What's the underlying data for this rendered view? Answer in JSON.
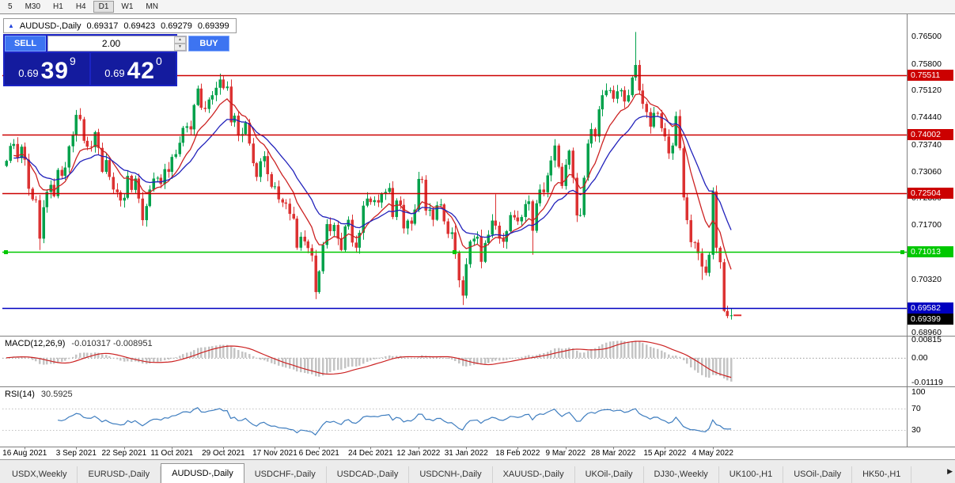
{
  "toolbar": {
    "timeframes": [
      "5",
      "M30",
      "H1",
      "H4",
      "D1",
      "W1",
      "MN"
    ],
    "active": "D1"
  },
  "chart": {
    "info": {
      "collapse_icon": "▲",
      "symbol": "AUDUSD-,Daily",
      "open": "0.69317",
      "high": "0.69423",
      "low": "0.69279",
      "close": "0.69399"
    },
    "trade_panel": {
      "sell_label": "SELL",
      "buy_label": "BUY",
      "volume": "2.00",
      "bid_small": "0.69",
      "bid_big": "39",
      "bid_sup": "9",
      "ask_small": "0.69",
      "ask_big": "42",
      "ask_sup": "0"
    },
    "y_axis_labels": [
      {
        "text": "0.76500",
        "value": 0.765
      },
      {
        "text": "0.75800",
        "value": 0.758
      },
      {
        "text": "0.75120",
        "value": 0.7512
      },
      {
        "text": "0.74440",
        "value": 0.7444
      },
      {
        "text": "0.73740",
        "value": 0.7374
      },
      {
        "text": "0.73060",
        "value": 0.7306
      },
      {
        "text": "0.72380",
        "value": 0.7238
      },
      {
        "text": "0.71700",
        "value": 0.717
      },
      {
        "text": "0.70320",
        "value": 0.7032
      },
      {
        "text": "0.68960",
        "value": 0.6896
      }
    ],
    "x_axis_labels": [
      {
        "text": "16 Aug 2021",
        "bar": 5
      },
      {
        "text": "3 Sep 2021",
        "bar": 19
      },
      {
        "text": "22 Sep 2021",
        "bar": 32
      },
      {
        "text": "11 Oct 2021",
        "bar": 45
      },
      {
        "text": "29 Oct 2021",
        "bar": 59
      },
      {
        "text": "17 Nov 2021",
        "bar": 73
      },
      {
        "text": "6 Dec 2021",
        "bar": 85
      },
      {
        "text": "24 Dec 2021",
        "bar": 99
      },
      {
        "text": "12 Jan 2022",
        "bar": 112
      },
      {
        "text": "31 Jan 2022",
        "bar": 125
      },
      {
        "text": "18 Feb 2022",
        "bar": 139
      },
      {
        "text": "9 Mar 2022",
        "bar": 152
      },
      {
        "text": "28 Mar 2022",
        "bar": 165
      },
      {
        "text": "15 Apr 2022",
        "bar": 179
      },
      {
        "text": "4 May 2022",
        "bar": 192
      }
    ],
    "hlines": [
      {
        "label": "0.75511",
        "value": 0.75511,
        "color": "#CC0000"
      },
      {
        "label": "0.74002",
        "value": 0.74002,
        "color": "#CC0000"
      },
      {
        "label": "0.72504",
        "value": 0.72504,
        "color": "#CC0000"
      },
      {
        "label": "0.71013",
        "value": 0.71013,
        "color": "#00C800",
        "handles": true
      },
      {
        "label": "0.69582",
        "value": 0.69582,
        "color": "#0000C0"
      }
    ],
    "current_price": {
      "label": "0.69399",
      "value": 0.69399,
      "color": "#000000"
    }
  },
  "macd": {
    "title": "MACD(12,26,9)",
    "values": "-0.010317 -0.008951",
    "fast": 12,
    "slow": 26,
    "signal": 9,
    "axis_labels": [
      {
        "text": "0.00815",
        "value": 0.00815
      },
      {
        "text": "0.00",
        "value": 0.0
      },
      {
        "text": "-0.01119",
        "value": -0.01119
      }
    ]
  },
  "rsi": {
    "title": "RSI(14)",
    "value": "30.5925",
    "period": 14,
    "levels": [
      70,
      30
    ],
    "axis_labels": [
      {
        "text": "100",
        "value": 100
      },
      {
        "text": "70",
        "value": 70
      },
      {
        "text": "30",
        "value": 30
      }
    ]
  },
  "tabbar": {
    "tabs": [
      "USDX,Weekly",
      "EURUSD-,Daily",
      "AUDUSD-,Daily",
      "USDCHF-,Daily",
      "USDCAD-,Daily",
      "USDCNH-,Daily",
      "XAUUSD-,Daily",
      "UKOil-,Daily",
      "DJ30-,Weekly",
      "UK100-,H1",
      "USOil-,Daily",
      "HK50-,H1"
    ],
    "active_index": 2,
    "more_icon": "▶"
  },
  "colors": {
    "up": "#00A14B",
    "down": "#DC3232",
    "ma_fast": "#CC2222",
    "ma_slow": "#2222BB",
    "macd_hist": "#C4C4C4",
    "macd_signal": "#CC2222",
    "rsi_line": "#3E7DBF",
    "dotted": "#C0C0C0",
    "separator": "#808080",
    "current_dash": "#E03232"
  },
  "chart_data": {
    "type": "candlestick",
    "symbol": "AUDUSD",
    "period": "Daily",
    "ylim": [
      0.689,
      0.7704
    ],
    "first_open": 0.732,
    "ma_periods": [
      10,
      21
    ],
    "closes": [
      0.7333,
      0.7371,
      0.7376,
      0.734,
      0.7369,
      0.7336,
      0.7262,
      0.7235,
      0.7233,
      0.7135,
      0.7215,
      0.7254,
      0.7272,
      0.7243,
      0.731,
      0.7295,
      0.7316,
      0.737,
      0.74,
      0.745,
      0.7439,
      0.7384,
      0.7369,
      0.7368,
      0.7406,
      0.7366,
      0.7305,
      0.7335,
      0.7292,
      0.726,
      0.7253,
      0.7232,
      0.7239,
      0.7295,
      0.7259,
      0.7288,
      0.7237,
      0.7182,
      0.7218,
      0.726,
      0.7288,
      0.729,
      0.7274,
      0.7312,
      0.7305,
      0.7343,
      0.735,
      0.7379,
      0.7417,
      0.7421,
      0.7413,
      0.7475,
      0.7517,
      0.7468,
      0.7465,
      0.7489,
      0.75,
      0.7519,
      0.754,
      0.7518,
      0.7522,
      0.7431,
      0.7448,
      0.7397,
      0.7401,
      0.743,
      0.7377,
      0.7327,
      0.7292,
      0.7332,
      0.7345,
      0.7299,
      0.7267,
      0.7268,
      0.7235,
      0.7227,
      0.7224,
      0.7198,
      0.7186,
      0.7112,
      0.714,
      0.7128,
      0.7111,
      0.7092,
      0.6999,
      0.7052,
      0.7119,
      0.7172,
      0.7154,
      0.717,
      0.7135,
      0.7106,
      0.7166,
      0.7183,
      0.7125,
      0.7112,
      0.715,
      0.7219,
      0.7237,
      0.7228,
      0.7233,
      0.7227,
      0.725,
      0.7254,
      0.7264,
      0.719,
      0.7232,
      0.7221,
      0.7161,
      0.7181,
      0.7173,
      0.7209,
      0.7287,
      0.7285,
      0.7206,
      0.7209,
      0.7183,
      0.722,
      0.7222,
      0.7179,
      0.7147,
      0.7151,
      0.7099,
      0.7029,
      0.699,
      0.707,
      0.7128,
      0.7135,
      0.714,
      0.7076,
      0.7124,
      0.7145,
      0.7181,
      0.7168,
      0.7135,
      0.7127,
      0.7154,
      0.7195,
      0.7189,
      0.7179,
      0.719,
      0.7223,
      0.723,
      0.7155,
      0.7225,
      0.726,
      0.7253,
      0.7296,
      0.7334,
      0.7372,
      0.7318,
      0.7269,
      0.7323,
      0.7359,
      0.729,
      0.7194,
      0.7195,
      0.729,
      0.7377,
      0.7414,
      0.7395,
      0.7464,
      0.75,
      0.7512,
      0.7513,
      0.7491,
      0.751,
      0.7513,
      0.7484,
      0.75,
      0.7545,
      0.7577,
      0.7512,
      0.7478,
      0.7457,
      0.742,
      0.7455,
      0.7454,
      0.7416,
      0.7395,
      0.7352,
      0.7372,
      0.7447,
      0.7365,
      0.724,
      0.7182,
      0.7126,
      0.7125,
      0.7098,
      0.7064,
      0.7048,
      0.7094,
      0.7255,
      0.7112,
      0.7075,
      0.6951,
      0.6938,
      0.69399
    ],
    "extra_wicks": {
      "9": {
        "low": 0.7106
      },
      "58": {
        "high": 0.7555
      },
      "84": {
        "low": 0.6993
      },
      "124": {
        "low": 0.6966
      },
      "133": {
        "high": 0.7248
      },
      "143": {
        "low": 0.7094
      },
      "171": {
        "high": 0.7661
      },
      "189": {
        "low": 0.703
      },
      "197": {
        "low": 0.6929
      }
    }
  }
}
